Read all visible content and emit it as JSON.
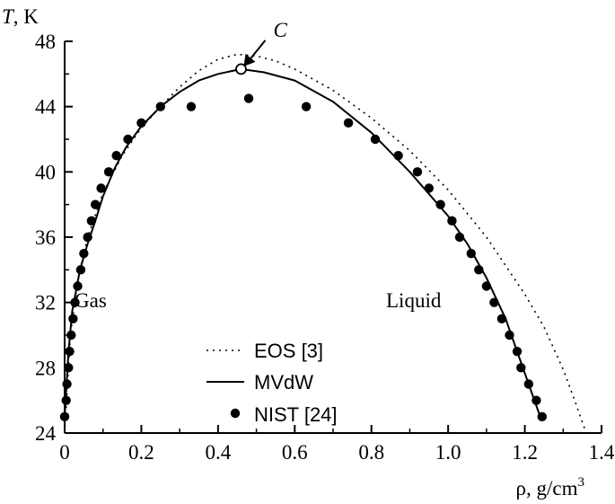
{
  "chart_data": {
    "type": "line",
    "ylabel_italic": "T",
    "ylabel_unit": ", K",
    "xlabel_main": "ρ, g/cm",
    "xlabel_sup": "3",
    "xlim": [
      0,
      1.4
    ],
    "ylim": [
      24,
      48
    ],
    "x_ticks": [
      "0",
      "0.2",
      "0.4",
      "0.6",
      "0.8",
      "1.0",
      "1.2",
      "1.4"
    ],
    "y_ticks": [
      "24",
      "28",
      "32",
      "36",
      "40",
      "44",
      "48"
    ],
    "grid": false,
    "legend_position": "bottom-center",
    "annotations": {
      "critical_point_label": "C",
      "gas_label": "Gas",
      "liquid_label": "Liquid"
    },
    "critical_point": {
      "x": 0.46,
      "y": 46.3
    },
    "series": [
      {
        "name": "EOS [3]",
        "style": "dotted",
        "points": [
          [
            0.0,
            24.0
          ],
          [
            0.015,
            30.0
          ],
          [
            0.035,
            33.5
          ],
          [
            0.06,
            36.0
          ],
          [
            0.1,
            38.7
          ],
          [
            0.15,
            41.0
          ],
          [
            0.2,
            42.7
          ],
          [
            0.25,
            44.0
          ],
          [
            0.3,
            45.2
          ],
          [
            0.35,
            46.2
          ],
          [
            0.4,
            46.9
          ],
          [
            0.45,
            47.2
          ],
          [
            0.5,
            47.1
          ],
          [
            0.55,
            46.8
          ],
          [
            0.6,
            46.3
          ],
          [
            0.7,
            45.0
          ],
          [
            0.8,
            43.3
          ],
          [
            0.9,
            41.3
          ],
          [
            1.0,
            38.9
          ],
          [
            1.1,
            36.0
          ],
          [
            1.2,
            32.5
          ],
          [
            1.25,
            30.5
          ],
          [
            1.3,
            27.9
          ],
          [
            1.33,
            26.0
          ],
          [
            1.36,
            24.0
          ]
        ]
      },
      {
        "name": "MVdW",
        "style": "solid",
        "points": [
          [
            0.0,
            25.0
          ],
          [
            0.01,
            29.0
          ],
          [
            0.02,
            31.5
          ],
          [
            0.04,
            34.0
          ],
          [
            0.06,
            35.6
          ],
          [
            0.08,
            37.0
          ],
          [
            0.1,
            38.5
          ],
          [
            0.13,
            40.2
          ],
          [
            0.16,
            41.5
          ],
          [
            0.2,
            42.8
          ],
          [
            0.25,
            44.0
          ],
          [
            0.3,
            44.9
          ],
          [
            0.35,
            45.6
          ],
          [
            0.4,
            46.0
          ],
          [
            0.46,
            46.3
          ],
          [
            0.52,
            46.1
          ],
          [
            0.6,
            45.6
          ],
          [
            0.7,
            44.3
          ],
          [
            0.8,
            42.4
          ],
          [
            0.9,
            40.0
          ],
          [
            1.0,
            37.3
          ],
          [
            1.05,
            35.6
          ],
          [
            1.1,
            33.5
          ],
          [
            1.15,
            31.0
          ],
          [
            1.18,
            29.0
          ],
          [
            1.21,
            27.0
          ],
          [
            1.24,
            25.0
          ]
        ]
      },
      {
        "name": "NIST [24]",
        "style": "dots",
        "points": [
          [
            0.0,
            25.0
          ],
          [
            0.004,
            26.0
          ],
          [
            0.006,
            27.0
          ],
          [
            0.01,
            28.0
          ],
          [
            0.013,
            29.0
          ],
          [
            0.017,
            30.0
          ],
          [
            0.022,
            31.0
          ],
          [
            0.027,
            32.0
          ],
          [
            0.034,
            33.0
          ],
          [
            0.042,
            34.0
          ],
          [
            0.05,
            35.0
          ],
          [
            0.06,
            36.0
          ],
          [
            0.07,
            37.0
          ],
          [
            0.08,
            38.0
          ],
          [
            0.095,
            39.0
          ],
          [
            0.115,
            40.0
          ],
          [
            0.135,
            41.0
          ],
          [
            0.165,
            42.0
          ],
          [
            0.2,
            43.0
          ],
          [
            0.25,
            44.0
          ],
          [
            0.33,
            44.0
          ],
          [
            0.48,
            44.5
          ],
          [
            0.63,
            44.0
          ],
          [
            0.74,
            43.0
          ],
          [
            0.81,
            42.0
          ],
          [
            0.87,
            41.0
          ],
          [
            0.92,
            40.0
          ],
          [
            0.95,
            39.0
          ],
          [
            0.98,
            38.0
          ],
          [
            1.01,
            37.0
          ],
          [
            1.03,
            36.0
          ],
          [
            1.06,
            35.0
          ],
          [
            1.08,
            34.0
          ],
          [
            1.1,
            33.0
          ],
          [
            1.12,
            32.0
          ],
          [
            1.14,
            31.0
          ],
          [
            1.16,
            30.0
          ],
          [
            1.18,
            29.0
          ],
          [
            1.19,
            28.0
          ],
          [
            1.21,
            27.0
          ],
          [
            1.23,
            26.0
          ],
          [
            1.245,
            25.0
          ]
        ]
      }
    ]
  }
}
